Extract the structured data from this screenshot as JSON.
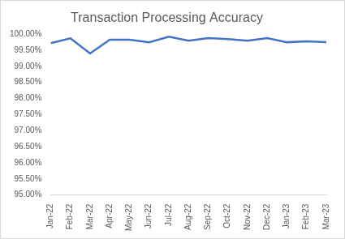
{
  "chart_data": {
    "type": "line",
    "title": "Transaction Processing Accuracy",
    "categories": [
      "Jan-22",
      "Feb-22",
      "Mar-22",
      "Apr-22",
      "May-22",
      "Jun-22",
      "Jul-22",
      "Aug-22",
      "Sep-22",
      "Oct-22",
      "Nov-22",
      "Dec-22",
      "Jan-23",
      "Feb-23",
      "Mar-23"
    ],
    "values": [
      99.72,
      99.87,
      99.4,
      99.83,
      99.83,
      99.75,
      99.92,
      99.8,
      99.88,
      99.85,
      99.8,
      99.88,
      99.75,
      99.78,
      99.75
    ],
    "color": "#4472c4",
    "marker": "none",
    "ylim": [
      95,
      100
    ],
    "yticks": [
      {
        "value": 95,
        "label": "95.00%"
      },
      {
        "value": 95.5,
        "label": "95.50%"
      },
      {
        "value": 96,
        "label": "96.00%"
      },
      {
        "value": 96.5,
        "label": "96.50%"
      },
      {
        "value": 97,
        "label": "97.00%"
      },
      {
        "value": 97.5,
        "label": "97.50%"
      },
      {
        "value": 98,
        "label": "98.00%"
      },
      {
        "value": 98.5,
        "label": "98.50%"
      },
      {
        "value": 99,
        "label": "99.00%"
      },
      {
        "value": 99.5,
        "label": "99.50%"
      },
      {
        "value": 100,
        "label": "100.00%"
      }
    ],
    "grid": false
  }
}
